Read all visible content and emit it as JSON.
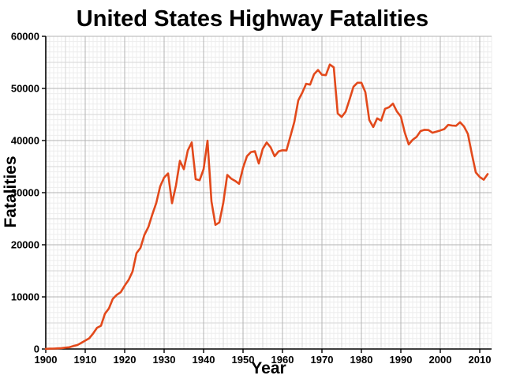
{
  "chart_data": {
    "type": "line",
    "title": "United States Highway Fatalities",
    "xlabel": "Year",
    "ylabel": "Fatalities",
    "xlim": [
      1900,
      2013
    ],
    "ylim": [
      0,
      60000
    ],
    "grid": {
      "x_minor": 1,
      "x_medium": 5,
      "x_major": 10,
      "y_minor": 1000,
      "y_medium": 5000,
      "y_major": 10000
    },
    "legend_position": "none",
    "x_ticks": [
      1900,
      1910,
      1920,
      1930,
      1940,
      1950,
      1960,
      1970,
      1980,
      1990,
      2000,
      2010
    ],
    "x_tick_labels": [
      "1900",
      "1910",
      "1920",
      "1930",
      "1940",
      "1950",
      "1960",
      "1970",
      "1980",
      "1990",
      "2000",
      "2010"
    ],
    "y_ticks": [
      0,
      10000,
      20000,
      30000,
      40000,
      50000,
      60000
    ],
    "y_tick_labels": [
      "0",
      "10000",
      "20000",
      "30000",
      "40000",
      "50000",
      "60000"
    ],
    "series": [
      {
        "name": "Highway fatalities",
        "color": "#e2491b",
        "x": [
          1900,
          1901,
          1902,
          1903,
          1904,
          1905,
          1906,
          1907,
          1908,
          1909,
          1910,
          1911,
          1912,
          1913,
          1914,
          1915,
          1916,
          1917,
          1918,
          1919,
          1920,
          1921,
          1922,
          1923,
          1924,
          1925,
          1926,
          1927,
          1928,
          1929,
          1930,
          1931,
          1932,
          1933,
          1934,
          1935,
          1936,
          1937,
          1938,
          1939,
          1940,
          1941,
          1942,
          1943,
          1944,
          1945,
          1946,
          1947,
          1948,
          1949,
          1950,
          1951,
          1952,
          1953,
          1954,
          1955,
          1956,
          1957,
          1958,
          1959,
          1960,
          1961,
          1962,
          1963,
          1964,
          1965,
          1966,
          1967,
          1968,
          1969,
          1970,
          1971,
          1972,
          1973,
          1974,
          1975,
          1976,
          1977,
          1978,
          1979,
          1980,
          1981,
          1982,
          1983,
          1984,
          1985,
          1986,
          1987,
          1988,
          1989,
          1990,
          1991,
          1992,
          1993,
          1994,
          1995,
          1996,
          1997,
          1998,
          1999,
          2000,
          2001,
          2002,
          2003,
          2004,
          2005,
          2006,
          2007,
          2008,
          2009,
          2010,
          2011,
          2012
        ],
        "values": [
          36,
          54,
          79,
          117,
          172,
          252,
          338,
          581,
          751,
          1174,
          1599,
          2043,
          2968,
          4079,
          4468,
          6779,
          7766,
          9630,
          10390,
          10896,
          12155,
          13253,
          14859,
          18400,
          19400,
          21900,
          23400,
          25800,
          28000,
          31215,
          32900,
          33700,
          27979,
          31363,
          36101,
          34494,
          38089,
          39643,
          32582,
          32386,
          34501,
          39969,
          28309,
          23823,
          24282,
          28076,
          33411,
          32697,
          32259,
          31701,
          34763,
          36996,
          37794,
          37955,
          35586,
          38426,
          39628,
          38702,
          36981,
          37910,
          38137,
          38091,
          40804,
          43564,
          47700,
          49163,
          50894,
          50724,
          52725,
          53543,
          52627,
          52542,
          54589,
          54052,
          45196,
          44525,
          45523,
          47878,
          50331,
          51093,
          51091,
          49301,
          43945,
          42589,
          44257,
          43825,
          46087,
          46390,
          47087,
          45582,
          44599,
          41508,
          39250,
          40150,
          40716,
          41817,
          42065,
          42013,
          41501,
          41717,
          41945,
          42196,
          43005,
          42884,
          42836,
          43510,
          42708,
          41259,
          37423,
          33883,
          32999,
          32479,
          33561
        ]
      }
    ]
  },
  "colors": {
    "background": "#ffffff",
    "line": "#e2491b",
    "axis": "#000000",
    "grid_minor": "#ededed",
    "grid_medium": "#d6d6d6",
    "grid_major": "#b3b3b3",
    "text": "#000000"
  }
}
